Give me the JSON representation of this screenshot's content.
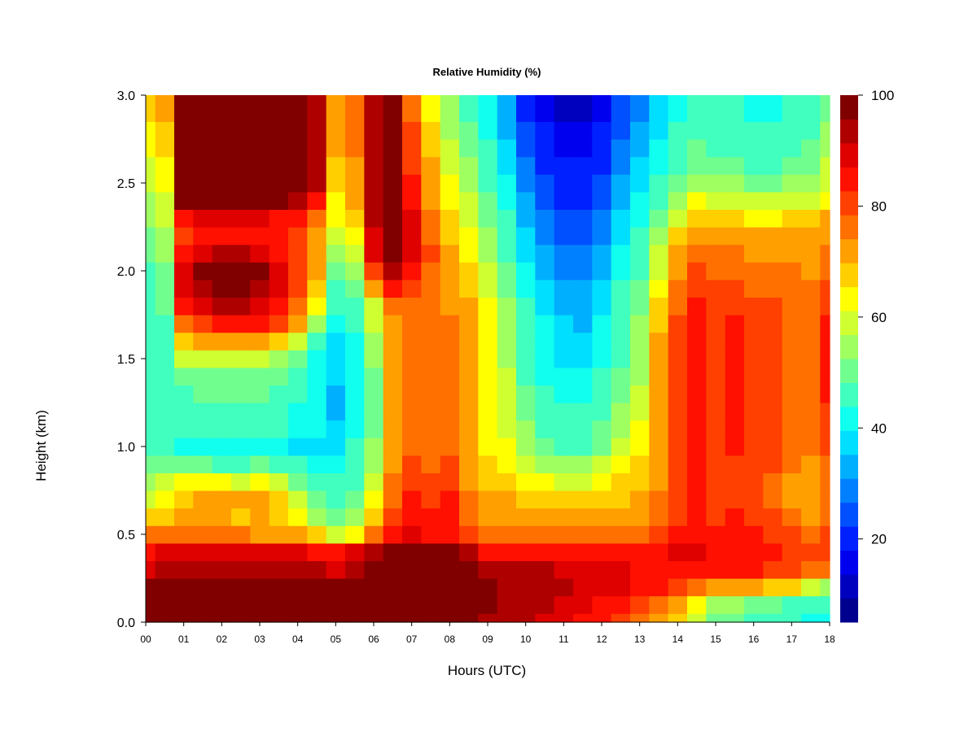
{
  "chart_data": {
    "type": "heatmap",
    "title": "Relative Humidity (%)",
    "xlabel": "Hours (UTC)",
    "ylabel": "Height (km)",
    "xlim": [
      0,
      18
    ],
    "ylim": [
      0.0,
      3.0
    ],
    "x_ticks": [
      "00",
      "01",
      "02",
      "03",
      "04",
      "05",
      "06",
      "07",
      "08",
      "09",
      "10",
      "11",
      "12",
      "13",
      "14",
      "15",
      "16",
      "17",
      "18"
    ],
    "y_ticks": [
      "0.0",
      "0.5",
      "1.0",
      "1.5",
      "2.0",
      "2.5",
      "3.0"
    ],
    "colorbar": {
      "range": [
        5,
        100
      ],
      "ticks": [
        "20",
        "40",
        "60",
        "80",
        "100"
      ],
      "tick_values": [
        20,
        40,
        60,
        80,
        100
      ],
      "levels": [
        5,
        10,
        15,
        20,
        25,
        30,
        35,
        40,
        45,
        50,
        55,
        60,
        65,
        70,
        75,
        80,
        85,
        90,
        95,
        100
      ],
      "colors": [
        "#00008F",
        "#0000BF",
        "#0000EF",
        "#0020FF",
        "#0050FF",
        "#0080FF",
        "#00B0FF",
        "#00DFFF",
        "#10FFEF",
        "#40FFBF",
        "#70FF8F",
        "#9FFF60",
        "#CFFF30",
        "#FFFF00",
        "#FFCF00",
        "#FF9F00",
        "#FF7000",
        "#FF4000",
        "#FF1000",
        "#DF0000",
        "#AF0000",
        "#800000"
      ]
    },
    "x": [
      0.0,
      0.5,
      1.0,
      1.5,
      2.0,
      2.5,
      3.0,
      3.5,
      4.0,
      4.5,
      5.0,
      5.5,
      6.0,
      6.5,
      7.0,
      7.5,
      8.0,
      8.5,
      9.0,
      9.5,
      10.0,
      10.5,
      11.0,
      11.5,
      12.0,
      12.5,
      13.0,
      13.5,
      14.0,
      14.5,
      15.0,
      15.5,
      16.0,
      16.5,
      17.0,
      17.5,
      18.0
    ],
    "y": [
      0.0,
      0.1,
      0.2,
      0.3,
      0.4,
      0.5,
      0.6,
      0.7,
      0.8,
      0.9,
      1.0,
      1.1,
      1.2,
      1.3,
      1.4,
      1.5,
      1.6,
      1.7,
      1.8,
      1.9,
      2.0,
      2.1,
      2.2,
      2.3,
      2.4,
      2.5,
      2.6,
      2.7,
      2.8,
      2.9,
      3.0
    ],
    "z": [
      [
        100,
        100,
        100,
        100,
        100,
        100,
        100,
        100,
        100,
        100,
        100,
        100,
        100,
        100,
        100,
        100,
        100,
        98,
        95,
        94,
        92,
        90,
        88,
        86,
        84,
        82,
        78,
        72,
        66,
        60,
        52,
        50,
        48,
        46,
        44,
        42,
        40
      ],
      [
        100,
        100,
        100,
        100,
        100,
        100,
        100,
        100,
        100,
        100,
        100,
        100,
        100,
        100,
        100,
        100,
        100,
        98,
        96,
        95,
        94,
        92,
        90,
        88,
        86,
        84,
        80,
        76,
        70,
        64,
        56,
        54,
        52,
        50,
        48,
        46,
        44
      ],
      [
        98,
        98,
        98,
        98,
        98,
        98,
        98,
        98,
        98,
        98,
        98,
        99,
        100,
        100,
        100,
        100,
        100,
        98,
        96,
        95,
        95,
        94,
        92,
        90,
        90,
        88,
        86,
        84,
        80,
        78,
        70,
        72,
        70,
        68,
        66,
        60,
        56
      ],
      [
        90,
        92,
        93,
        93,
        92,
        92,
        92,
        92,
        92,
        92,
        90,
        93,
        96,
        100,
        100,
        100,
        100,
        96,
        92,
        92,
        93,
        92,
        90,
        88,
        88,
        88,
        87,
        86,
        86,
        84,
        84,
        84,
        84,
        82,
        80,
        78,
        75
      ],
      [
        86,
        88,
        88,
        88,
        88,
        88,
        88,
        88,
        88,
        86,
        84,
        88,
        92,
        96,
        98,
        96,
        96,
        92,
        86,
        86,
        86,
        86,
        86,
        86,
        86,
        86,
        86,
        86,
        88,
        88,
        86,
        86,
        86,
        84,
        82,
        80,
        80
      ],
      [
        76,
        78,
        78,
        78,
        78,
        76,
        74,
        74,
        72,
        68,
        58,
        64,
        78,
        86,
        88,
        86,
        86,
        82,
        76,
        76,
        76,
        76,
        76,
        76,
        76,
        76,
        76,
        80,
        84,
        86,
        84,
        86,
        84,
        82,
        80,
        78,
        80
      ],
      [
        66,
        68,
        70,
        70,
        70,
        68,
        70,
        68,
        62,
        55,
        50,
        55,
        68,
        80,
        86,
        84,
        84,
        78,
        72,
        72,
        72,
        70,
        70,
        70,
        72,
        72,
        72,
        76,
        82,
        84,
        82,
        84,
        82,
        80,
        76,
        74,
        78
      ],
      [
        60,
        62,
        68,
        72,
        72,
        70,
        72,
        68,
        58,
        50,
        46,
        50,
        64,
        78,
        84,
        82,
        84,
        76,
        70,
        70,
        68,
        68,
        66,
        66,
        68,
        68,
        70,
        76,
        82,
        84,
        80,
        82,
        80,
        78,
        74,
        72,
        76
      ],
      [
        56,
        58,
        62,
        62,
        62,
        60,
        62,
        58,
        52,
        46,
        44,
        48,
        60,
        76,
        82,
        80,
        82,
        74,
        68,
        68,
        64,
        62,
        60,
        60,
        64,
        66,
        68,
        74,
        80,
        84,
        80,
        82,
        80,
        78,
        74,
        72,
        76
      ],
      [
        50,
        52,
        52,
        50,
        48,
        48,
        50,
        46,
        44,
        42,
        42,
        46,
        56,
        72,
        80,
        78,
        80,
        72,
        66,
        64,
        60,
        56,
        54,
        54,
        58,
        62,
        66,
        72,
        80,
        84,
        80,
        82,
        80,
        80,
        76,
        74,
        78
      ],
      [
        46,
        46,
        42,
        42,
        40,
        40,
        42,
        40,
        38,
        38,
        36,
        44,
        54,
        70,
        78,
        76,
        78,
        70,
        64,
        62,
        56,
        50,
        48,
        48,
        52,
        58,
        64,
        72,
        80,
        86,
        80,
        84,
        82,
        82,
        78,
        76,
        80
      ],
      [
        46,
        46,
        44,
        44,
        44,
        44,
        44,
        44,
        42,
        40,
        36,
        42,
        52,
        70,
        78,
        76,
        76,
        70,
        64,
        60,
        54,
        48,
        46,
        46,
        50,
        56,
        62,
        72,
        80,
        86,
        82,
        84,
        82,
        82,
        78,
        76,
        82
      ],
      [
        44,
        44,
        46,
        46,
        46,
        46,
        46,
        44,
        42,
        40,
        34,
        40,
        52,
        70,
        78,
        76,
        76,
        70,
        64,
        60,
        52,
        46,
        44,
        44,
        48,
        54,
        60,
        72,
        80,
        86,
        82,
        84,
        82,
        82,
        78,
        76,
        82
      ],
      [
        44,
        46,
        48,
        50,
        50,
        50,
        50,
        48,
        44,
        40,
        34,
        40,
        52,
        70,
        78,
        76,
        76,
        70,
        64,
        58,
        50,
        44,
        42,
        42,
        46,
        52,
        58,
        70,
        80,
        86,
        82,
        84,
        82,
        80,
        78,
        76,
        84
      ],
      [
        44,
        46,
        50,
        52,
        52,
        52,
        52,
        50,
        46,
        42,
        36,
        40,
        52,
        70,
        78,
        76,
        76,
        70,
        64,
        58,
        48,
        42,
        40,
        40,
        44,
        50,
        56,
        70,
        80,
        86,
        82,
        84,
        80,
        80,
        78,
        76,
        84
      ],
      [
        44,
        46,
        58,
        60,
        60,
        60,
        58,
        56,
        50,
        42,
        36,
        40,
        54,
        72,
        78,
        76,
        76,
        70,
        64,
        56,
        48,
        40,
        38,
        38,
        42,
        48,
        54,
        70,
        80,
        86,
        82,
        84,
        80,
        80,
        78,
        76,
        84
      ],
      [
        44,
        48,
        66,
        72,
        74,
        72,
        70,
        66,
        58,
        48,
        38,
        42,
        56,
        72,
        78,
        76,
        76,
        70,
        62,
        56,
        46,
        40,
        36,
        36,
        40,
        46,
        54,
        70,
        80,
        86,
        82,
        84,
        82,
        80,
        78,
        76,
        84
      ],
      [
        44,
        48,
        76,
        82,
        84,
        84,
        84,
        80,
        70,
        56,
        40,
        44,
        58,
        74,
        78,
        76,
        76,
        70,
        62,
        54,
        46,
        40,
        36,
        34,
        40,
        46,
        54,
        68,
        80,
        86,
        82,
        84,
        82,
        80,
        78,
        76,
        84
      ],
      [
        46,
        50,
        84,
        90,
        92,
        92,
        90,
        86,
        76,
        62,
        44,
        46,
        60,
        76,
        78,
        76,
        74,
        70,
        62,
        54,
        44,
        38,
        34,
        34,
        38,
        46,
        52,
        66,
        78,
        84,
        82,
        82,
        80,
        80,
        78,
        76,
        82
      ],
      [
        46,
        50,
        88,
        94,
        96,
        96,
        94,
        88,
        80,
        68,
        48,
        50,
        70,
        86,
        82,
        76,
        72,
        68,
        60,
        52,
        42,
        36,
        32,
        32,
        36,
        44,
        50,
        64,
        76,
        82,
        80,
        80,
        78,
        78,
        78,
        76,
        80
      ],
      [
        48,
        52,
        90,
        96,
        98,
        98,
        96,
        90,
        82,
        70,
        52,
        54,
        80,
        94,
        86,
        78,
        70,
        66,
        58,
        50,
        40,
        34,
        30,
        30,
        34,
        42,
        48,
        60,
        74,
        80,
        78,
        78,
        76,
        76,
        76,
        74,
        78
      ],
      [
        50,
        54,
        86,
        90,
        92,
        92,
        90,
        86,
        80,
        72,
        56,
        60,
        88,
        98,
        90,
        80,
        70,
        64,
        56,
        48,
        38,
        32,
        28,
        28,
        32,
        40,
        46,
        58,
        70,
        78,
        76,
        76,
        74,
        74,
        74,
        72,
        76
      ],
      [
        52,
        56,
        80,
        84,
        86,
        86,
        86,
        84,
        80,
        74,
        58,
        62,
        90,
        100,
        90,
        78,
        68,
        62,
        54,
        46,
        36,
        30,
        26,
        26,
        30,
        38,
        44,
        54,
        66,
        74,
        72,
        72,
        70,
        70,
        72,
        70,
        74
      ],
      [
        54,
        58,
        86,
        88,
        88,
        88,
        88,
        86,
        84,
        78,
        62,
        66,
        92,
        100,
        88,
        76,
        66,
        60,
        52,
        44,
        34,
        28,
        24,
        24,
        28,
        36,
        42,
        50,
        60,
        68,
        66,
        66,
        64,
        64,
        66,
        66,
        70
      ],
      [
        56,
        60,
        96,
        98,
        98,
        98,
        98,
        96,
        92,
        86,
        64,
        70,
        92,
        100,
        86,
        74,
        64,
        58,
        50,
        42,
        32,
        26,
        22,
        22,
        26,
        34,
        40,
        46,
        54,
        62,
        60,
        60,
        58,
        58,
        60,
        60,
        64
      ],
      [
        58,
        62,
        100,
        100,
        100,
        100,
        100,
        100,
        98,
        92,
        66,
        72,
        92,
        98,
        84,
        72,
        62,
        56,
        48,
        40,
        30,
        24,
        20,
        20,
        24,
        32,
        38,
        44,
        50,
        56,
        54,
        54,
        52,
        52,
        54,
        56,
        60
      ],
      [
        60,
        64,
        100,
        100,
        100,
        100,
        100,
        100,
        100,
        94,
        68,
        74,
        92,
        96,
        82,
        70,
        60,
        54,
        46,
        38,
        28,
        22,
        18,
        18,
        22,
        30,
        36,
        42,
        48,
        52,
        50,
        50,
        48,
        48,
        50,
        52,
        58
      ],
      [
        62,
        66,
        100,
        100,
        100,
        100,
        100,
        100,
        100,
        94,
        70,
        76,
        92,
        96,
        80,
        68,
        58,
        52,
        44,
        36,
        26,
        20,
        16,
        16,
        20,
        28,
        34,
        40,
        46,
        50,
        48,
        48,
        46,
        46,
        48,
        50,
        56
      ],
      [
        64,
        68,
        100,
        100,
        100,
        100,
        100,
        100,
        100,
        94,
        72,
        78,
        92,
        96,
        80,
        66,
        56,
        50,
        42,
        34,
        24,
        18,
        14,
        14,
        18,
        26,
        32,
        38,
        44,
        48,
        46,
        46,
        44,
        44,
        46,
        48,
        54
      ],
      [
        66,
        70,
        100,
        100,
        100,
        100,
        100,
        100,
        100,
        94,
        72,
        78,
        92,
        96,
        78,
        64,
        54,
        48,
        40,
        32,
        22,
        16,
        12,
        12,
        16,
        24,
        30,
        36,
        42,
        46,
        44,
        44,
        42,
        42,
        44,
        46,
        52
      ],
      [
        68,
        72,
        100,
        100,
        100,
        100,
        100,
        100,
        100,
        94,
        72,
        78,
        92,
        96,
        78,
        64,
        54,
        48,
        40,
        32,
        22,
        16,
        12,
        12,
        16,
        24,
        30,
        36,
        42,
        46,
        44,
        44,
        42,
        42,
        44,
        46,
        52
      ]
    ]
  }
}
